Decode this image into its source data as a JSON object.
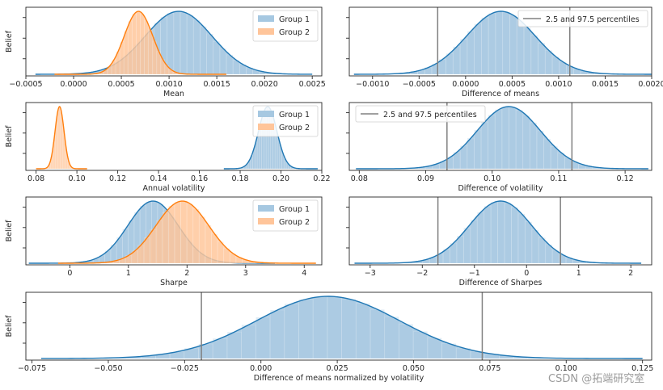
{
  "colors": {
    "group1": "#1f77b4",
    "group1_fill": "#a6c8e1",
    "group2": "#ff7f0e",
    "group2_fill": "#ffc59a",
    "percentile": "#808080"
  },
  "watermark": "CSDN @拓端研究室",
  "chart_data": [
    {
      "type": "area",
      "xlabel": "Mean",
      "ylabel": "Belief",
      "xlim": [
        -0.0005,
        0.0026
      ],
      "xticks": [
        -0.0005,
        0.0,
        0.0005,
        0.001,
        0.0015,
        0.002,
        0.0025
      ],
      "xtick_labels": [
        "−0.0005",
        "0.0000",
        "0.0005",
        "0.0010",
        "0.0015",
        "0.0020",
        "0.0025"
      ],
      "legend": "top-right",
      "series": [
        {
          "name": "Group 1",
          "color": "#1f77b4",
          "mean": 0.0011,
          "sd": 0.00035,
          "range": [
            -0.0004,
            0.0025
          ]
        },
        {
          "name": "Group 2",
          "color": "#ff7f0e",
          "mean": 0.00068,
          "sd": 0.00015,
          "range": [
            -0.0002,
            0.0016
          ]
        }
      ]
    },
    {
      "type": "area",
      "xlabel": "Difference of means",
      "xlim": [
        -0.00125,
        0.002
      ],
      "xticks": [
        -0.001,
        -0.0005,
        0.0,
        0.0005,
        0.001,
        0.0015,
        0.002
      ],
      "xtick_labels": [
        "−0.0010",
        "−0.0005",
        "0.0000",
        "0.0005",
        "0.0010",
        "0.0015",
        "0.0020"
      ],
      "legend": "top-right",
      "percentile_label": "2.5 and 97.5 percentiles",
      "percentiles": [
        -0.0003,
        0.00112
      ],
      "series": [
        {
          "color": "#1f77b4",
          "mean": 0.00038,
          "sd": 0.00037,
          "range": [
            -0.0012,
            0.002
          ]
        }
      ]
    },
    {
      "type": "area",
      "xlabel": "Annual volatility",
      "ylabel": "Belief",
      "xlim": [
        0.075,
        0.22
      ],
      "xticks": [
        0.08,
        0.1,
        0.12,
        0.14,
        0.16,
        0.18,
        0.2,
        0.22
      ],
      "xtick_labels": [
        "0.08",
        "0.10",
        "0.12",
        "0.14",
        "0.16",
        "0.18",
        "0.20",
        "0.22"
      ],
      "legend": "top-right",
      "series": [
        {
          "name": "Group 1",
          "color": "#1f77b4",
          "mean": 0.1935,
          "sd": 0.0045,
          "range": [
            0.172,
            0.218
          ]
        },
        {
          "name": "Group 2",
          "color": "#ff7f0e",
          "mean": 0.0915,
          "sd": 0.0022,
          "range": [
            0.08,
            0.105
          ]
        }
      ]
    },
    {
      "type": "area",
      "xlabel": "Difference of volatility",
      "xlim": [
        0.0785,
        0.124
      ],
      "xticks": [
        0.08,
        0.09,
        0.1,
        0.11,
        0.12
      ],
      "xtick_labels": [
        "0.08",
        "0.09",
        "0.10",
        "0.11",
        "0.12"
      ],
      "legend": "top-left",
      "percentile_label": "2.5 and 97.5 percentiles",
      "percentiles": [
        0.0932,
        0.112
      ],
      "series": [
        {
          "color": "#1f77b4",
          "mean": 0.1025,
          "sd": 0.0048,
          "range": [
            0.0795,
            0.1235
          ]
        }
      ]
    },
    {
      "type": "area",
      "xlabel": "Sharpe",
      "ylabel": "Belief",
      "xlim": [
        -0.75,
        4.3
      ],
      "xticks": [
        0,
        1,
        2,
        3,
        4
      ],
      "xtick_labels": [
        "0",
        "1",
        "2",
        "3",
        "4"
      ],
      "legend": "top-right",
      "series": [
        {
          "name": "Group 1",
          "color": "#1f77b4",
          "mean": 1.42,
          "sd": 0.43,
          "range": [
            -0.7,
            3.5
          ]
        },
        {
          "name": "Group 2",
          "color": "#ff7f0e",
          "mean": 1.92,
          "sd": 0.45,
          "range": [
            -0.2,
            4.2
          ]
        }
      ]
    },
    {
      "type": "area",
      "xlabel": "Difference of Sharpes",
      "xlim": [
        -3.4,
        2.4
      ],
      "xticks": [
        -3,
        -2,
        -1,
        0,
        1,
        2
      ],
      "xtick_labels": [
        "−3",
        "−2",
        "−1",
        "0",
        "1",
        "2"
      ],
      "percentiles": [
        -1.7,
        0.65
      ],
      "series": [
        {
          "color": "#1f77b4",
          "mean": -0.5,
          "sd": 0.6,
          "range": [
            -3.3,
            2.2
          ]
        }
      ]
    },
    {
      "type": "area",
      "xlabel": "Difference of means normalized by volatility",
      "ylabel": "Belief",
      "xlim": [
        -0.077,
        0.128
      ],
      "xticks": [
        -0.075,
        -0.05,
        -0.025,
        0.0,
        0.025,
        0.05,
        0.075,
        0.1,
        0.125
      ],
      "xtick_labels": [
        "−0.075",
        "−0.050",
        "−0.025",
        "0.000",
        "0.025",
        "0.050",
        "0.075",
        "0.100",
        "0.125"
      ],
      "percentiles": [
        -0.0195,
        0.0725
      ],
      "series": [
        {
          "color": "#1f77b4",
          "mean": 0.022,
          "sd": 0.0235,
          "range": [
            -0.072,
            0.125
          ]
        }
      ]
    }
  ]
}
